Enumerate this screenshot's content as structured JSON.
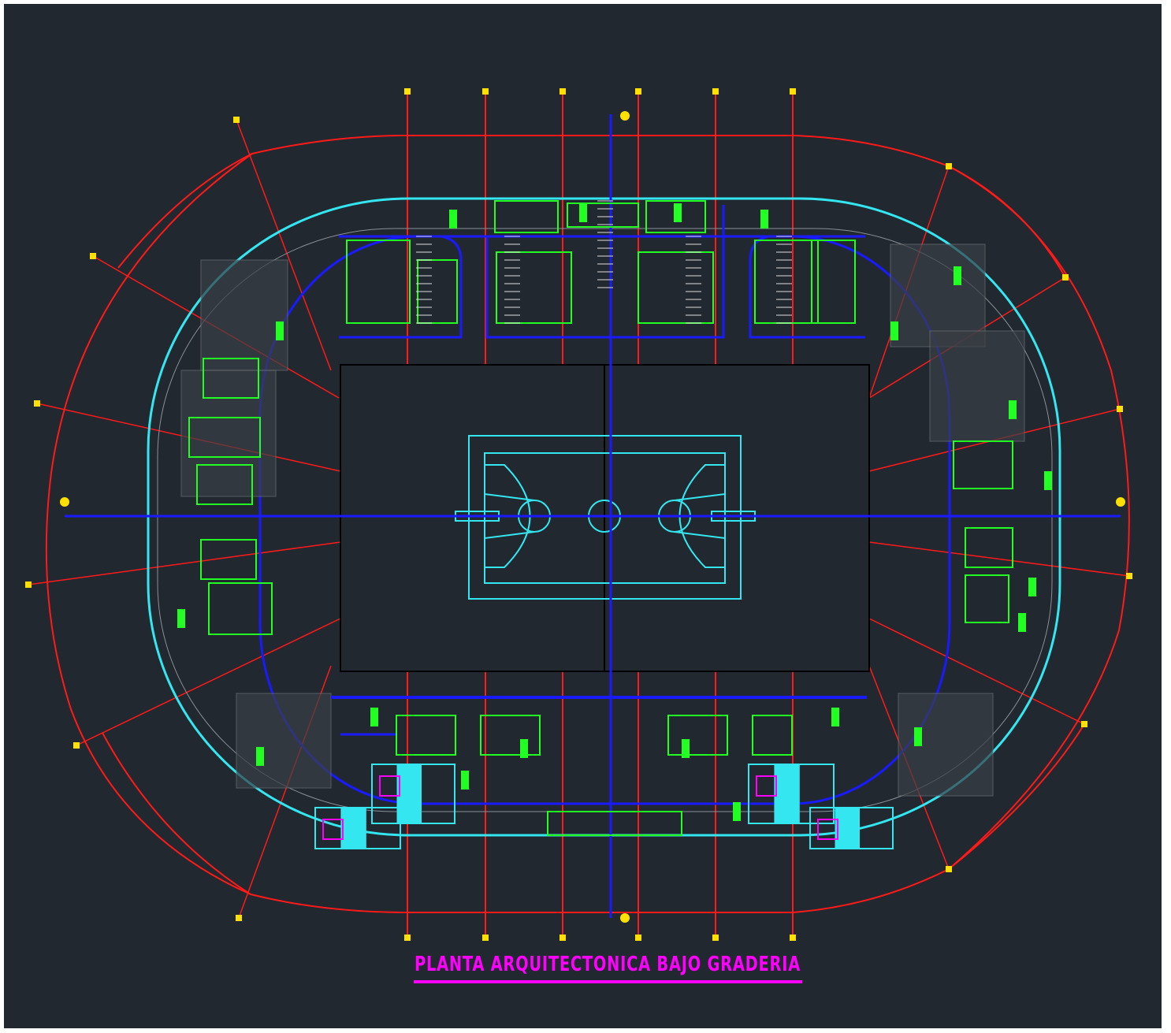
{
  "drawing": {
    "title": "PLANTA ARQUITECTONICA BAJO GRADERIA"
  }
}
